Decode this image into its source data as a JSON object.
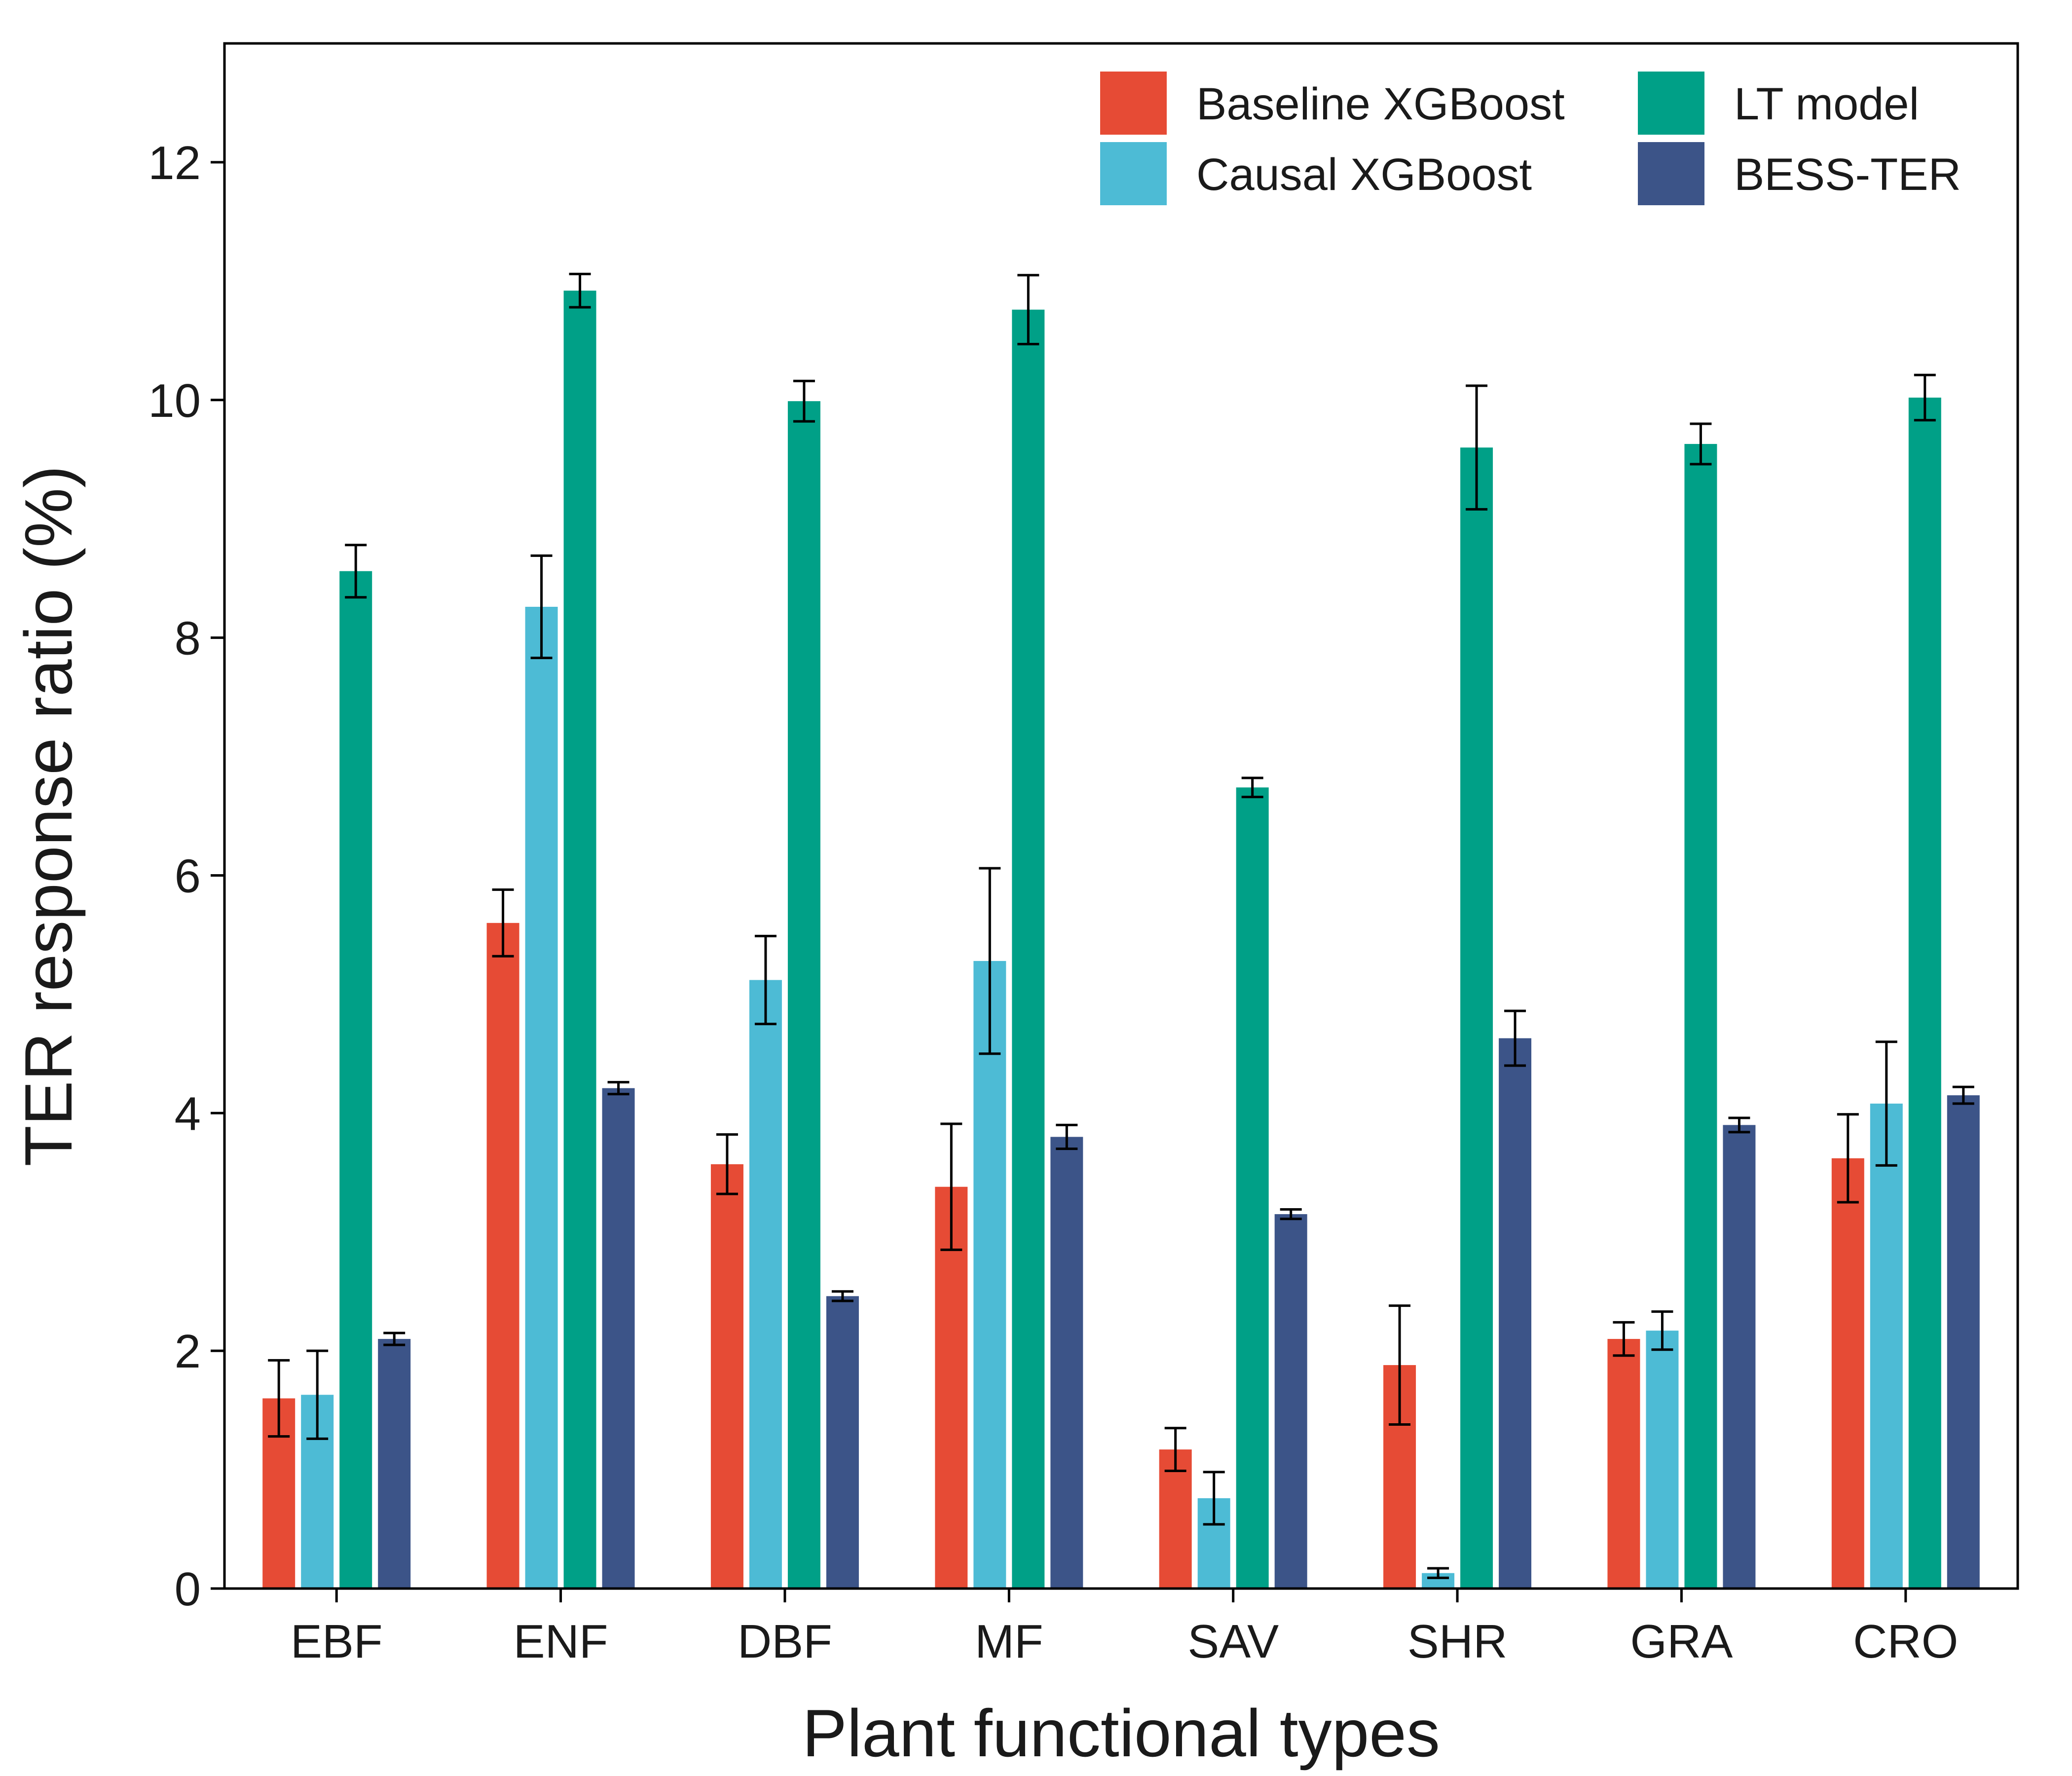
{
  "chart_data": {
    "type": "bar",
    "title": "",
    "xlabel": "Plant functional types",
    "ylabel": "TER response ratio (%)",
    "ylim": [
      0,
      13
    ],
    "yticks": [
      0,
      2,
      4,
      6,
      8,
      10,
      12
    ],
    "grid": false,
    "legend_position": "top-right",
    "categories": [
      "EBF",
      "ENF",
      "DBF",
      "MF",
      "SAV",
      "SHR",
      "GRA",
      "CRO"
    ],
    "series": [
      {
        "name": "Baseline XGBoost",
        "color": "#E64B35",
        "values": [
          1.6,
          5.6,
          3.57,
          3.38,
          1.17,
          1.88,
          2.1,
          3.62
        ],
        "errors": [
          0.32,
          0.28,
          0.25,
          0.53,
          0.18,
          0.5,
          0.14,
          0.37
        ]
      },
      {
        "name": "Causal XGBoost",
        "color": "#4DBBD5",
        "values": [
          1.63,
          8.26,
          5.12,
          5.28,
          0.76,
          0.13,
          2.17,
          4.08
        ],
        "errors": [
          0.37,
          0.43,
          0.37,
          0.78,
          0.22,
          0.04,
          0.16,
          0.52
        ]
      },
      {
        "name": "LT model",
        "color": "#00A087",
        "values": [
          8.56,
          10.92,
          9.99,
          10.76,
          6.74,
          9.6,
          9.63,
          10.02
        ],
        "errors": [
          0.22,
          0.14,
          0.17,
          0.29,
          0.08,
          0.52,
          0.17,
          0.19
        ]
      },
      {
        "name": "BESS-TER",
        "color": "#3C5488",
        "values": [
          2.1,
          4.21,
          2.46,
          3.8,
          3.15,
          4.63,
          3.9,
          4.15
        ],
        "errors": [
          0.05,
          0.05,
          0.04,
          0.1,
          0.04,
          0.23,
          0.06,
          0.07
        ]
      }
    ]
  }
}
